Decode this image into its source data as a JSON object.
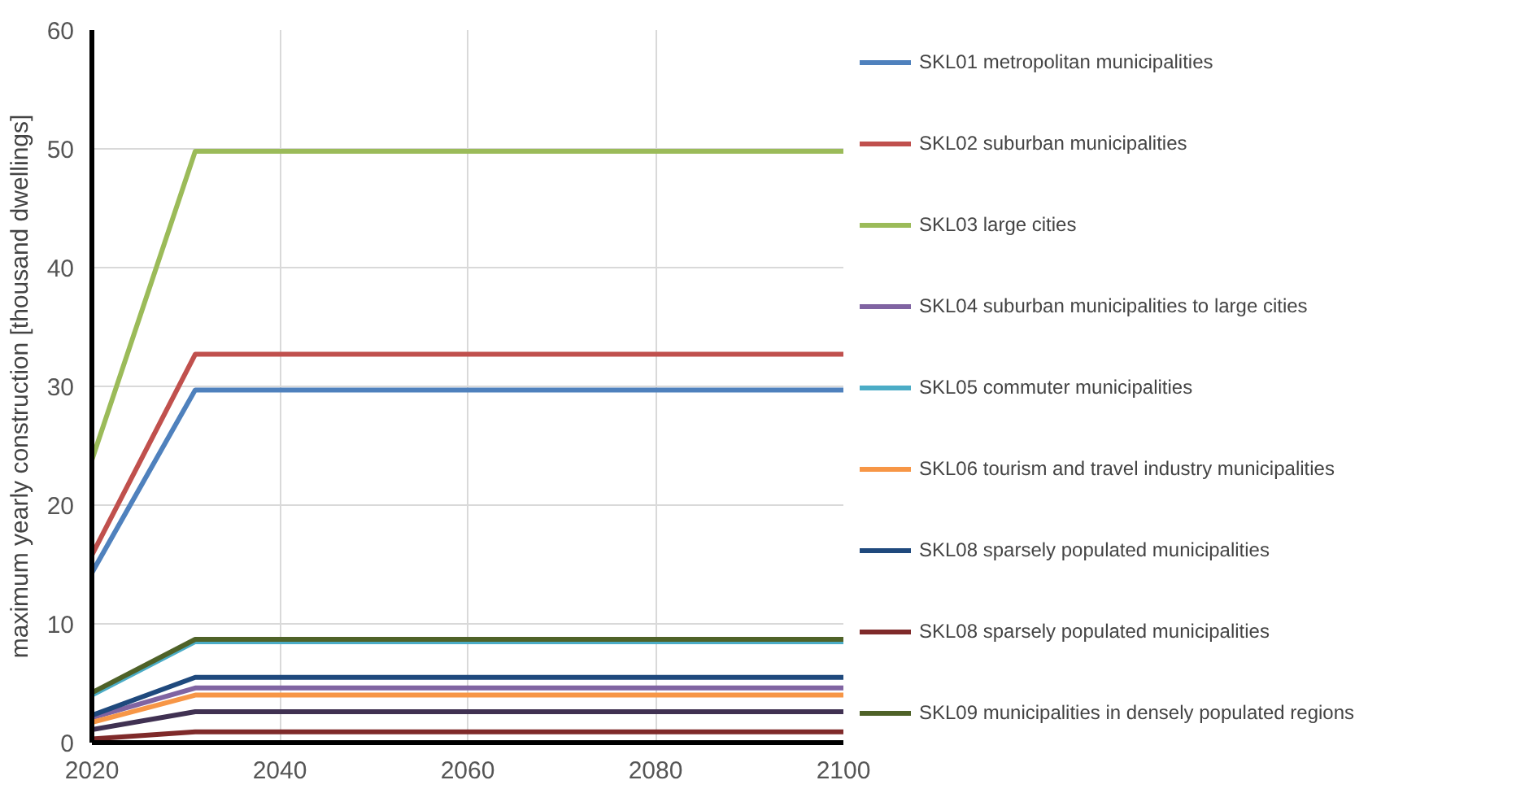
{
  "chart_data": {
    "type": "line",
    "ylabel": "maximum yearly construction [thousand dwellings]",
    "x": [
      2020,
      2031,
      2100
    ],
    "xlim": [
      2020,
      2100
    ],
    "xticks": [
      2020,
      2040,
      2060,
      2080,
      2100
    ],
    "ylim": [
      0,
      60
    ],
    "yticks": [
      0,
      10,
      20,
      30,
      40,
      50,
      60
    ],
    "grid": true,
    "legend": "right",
    "series": [
      {
        "name": "SKL01 metropolitan municipalities",
        "color": "#4f81bd",
        "values": [
          14.3,
          29.7,
          29.7
        ]
      },
      {
        "name": "SKL02 suburban municipalities",
        "color": "#c0504d",
        "values": [
          15.8,
          32.7,
          32.7
        ]
      },
      {
        "name": "SKL03 large cities",
        "color": "#9bbb59",
        "values": [
          23.8,
          49.8,
          49.8
        ]
      },
      {
        "name": "SKL04 suburban municipalities to large cities",
        "color": "#8064a2",
        "values": [
          2.1,
          4.6,
          4.6
        ]
      },
      {
        "name": "SKL05 commuter municipalities",
        "color": "#4bacc6",
        "values": [
          4.0,
          8.5,
          8.5
        ]
      },
      {
        "name": "SKL06 tourism and travel industry municipalities",
        "color": "#f79646",
        "values": [
          1.7,
          4.0,
          4.0
        ]
      },
      {
        "name": "SKL08 sparsely populated municipalities",
        "color": "#1f497d",
        "values": [
          2.3,
          5.5,
          5.5
        ]
      },
      {
        "name": "SKL08 sparsely populated municipalities",
        "color": "#7f2a2a",
        "values": [
          0.3,
          0.9,
          0.9
        ]
      },
      {
        "name": "SKL09 municipalities in densely populated regions",
        "color": "#4f6228",
        "values": [
          4.2,
          8.7,
          8.7
        ]
      },
      {
        "color": "#403152",
        "values": [
          1.1,
          2.6,
          2.6
        ]
      }
    ]
  }
}
